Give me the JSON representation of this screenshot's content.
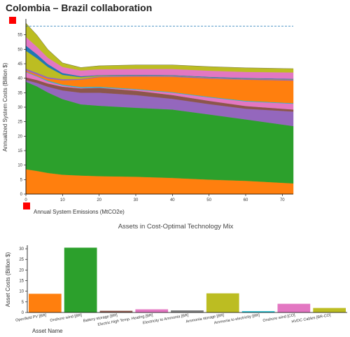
{
  "title": "Colombia – Brazil collaboration",
  "marker_color": "#ff0000",
  "chart_data": [
    {
      "type": "area",
      "stacked": true,
      "ylabel": "Annualized System Costs (Billion $)",
      "xlabel": "Annual System Emissions (MtCO2e)",
      "xlim": [
        0,
        73
      ],
      "ylim": [
        0,
        60
      ],
      "xticks": [
        0,
        10,
        20,
        30,
        40,
        50,
        60,
        70
      ],
      "yticks": [
        0,
        5,
        10,
        15,
        20,
        25,
        30,
        35,
        40,
        45,
        50,
        55
      ],
      "reference_line_y": 58,
      "x": [
        0,
        3,
        6,
        10,
        15,
        20,
        30,
        40,
        50,
        60,
        73
      ],
      "series": [
        {
          "color": "#ff7f0e",
          "values": [
            8.6,
            8.0,
            7.3,
            6.7,
            6.4,
            6.2,
            6.0,
            5.6,
            5.0,
            4.6,
            3.7
          ]
        },
        {
          "color": "#2ca02c",
          "values": [
            30.2,
            29.2,
            27.8,
            26.1,
            24.6,
            24.3,
            23.8,
            23.6,
            22.5,
            21.2,
            19.8
          ]
        },
        {
          "color": "#9467bd",
          "values": [
            0.6,
            1.2,
            2.0,
            3.0,
            4.0,
            4.5,
            4.4,
            3.7,
            3.6,
            3.7,
            5.0
          ]
        },
        {
          "color": "#8c564b",
          "values": [
            0.9,
            1.0,
            1.1,
            1.3,
            1.5,
            1.7,
            1.5,
            1.3,
            1.1,
            0.9,
            0.7
          ]
        },
        {
          "color": "#e377c2",
          "values": [
            1.8,
            1.2,
            0.7,
            0.4,
            0.2,
            0.1,
            0.4,
            0.8,
            1.2,
            1.6,
            2.0
          ]
        },
        {
          "color": "#17becf",
          "values": [
            0.2,
            0.2,
            0.3,
            0.3,
            0.3,
            0.3,
            0.2,
            0.2,
            0.2,
            0.2,
            0.2
          ]
        },
        {
          "color": "#ff7f0e",
          "values": [
            0.4,
            0.5,
            0.7,
            1.5,
            2.5,
            3.3,
            4.3,
            5.3,
            6.3,
            7.3,
            7.8
          ]
        },
        {
          "color": "#9467bd",
          "values": [
            0.6,
            0.6,
            0.5,
            0.4,
            0.3,
            0.3,
            0.3,
            0.3,
            0.3,
            0.3,
            0.3
          ]
        },
        {
          "color": "#bcbd22",
          "values": [
            6.2,
            5.0,
            3.5,
            1.5,
            0.6,
            0.2,
            0.1,
            0.1,
            0.1,
            0.1,
            0.1
          ]
        },
        {
          "color": "#1f77b4",
          "values": [
            1.8,
            1.4,
            1.0,
            0.6,
            0.3,
            0.2,
            0.2,
            0.2,
            0.2,
            0.2,
            0.2
          ]
        },
        {
          "color": "#e377c2",
          "values": [
            3.0,
            2.6,
            2.2,
            2.1,
            2.0,
            2.0,
            2.0,
            2.1,
            2.1,
            2.1,
            2.2
          ]
        },
        {
          "color": "#bcbd22",
          "values": [
            4.7,
            4.0,
            2.8,
            1.4,
            1.0,
            1.2,
            1.4,
            1.4,
            1.4,
            1.4,
            1.3
          ]
        }
      ]
    },
    {
      "type": "bar",
      "title": "Assets in Cost-Optimal Technology Mix",
      "ylabel": "Asset Costs (Billion $)",
      "xlabel": "Asset Name",
      "ylim": [
        0,
        31
      ],
      "yticks": [
        0,
        5,
        10,
        15,
        20,
        25,
        30
      ],
      "categories": [
        "Openfield PV [BR]",
        "Onshore wind [BR]",
        "Battery storage [BR]",
        "Electric High Temp. Heating [BR]",
        "Electricity to Ammonia [BR]",
        "Ammonia storage [BR]",
        "Ammonia to electricity [BR]",
        "Onshore wind [CO]",
        "HVDC Cables [BR-CO]"
      ],
      "values": [
        8.8,
        30.5,
        0.8,
        1.5,
        1.0,
        9.0,
        0.6,
        4.1,
        2.1
      ],
      "colors": [
        "#ff7f0e",
        "#2ca02c",
        "#8c564b",
        "#e377c2",
        "#7f7f7f",
        "#bcbd22",
        "#17becf",
        "#e377c2",
        "#bcbd22"
      ]
    }
  ]
}
